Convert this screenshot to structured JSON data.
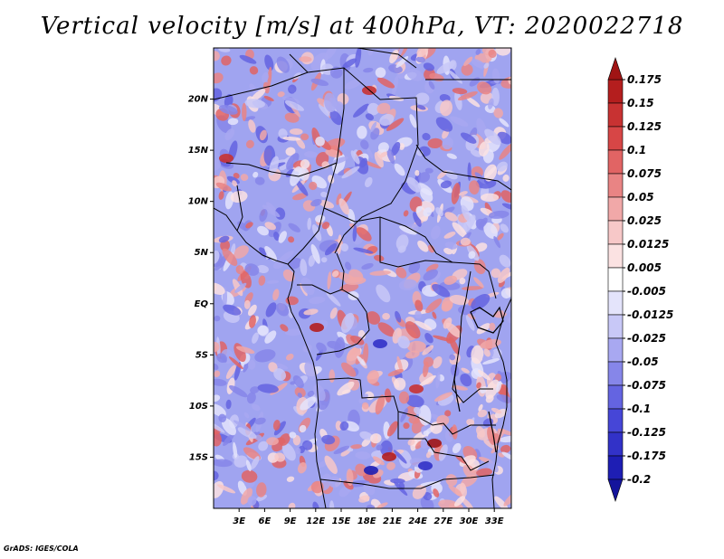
{
  "title": "Vertical velocity [m/s] at 400hPa, VT: 2020022718",
  "credit": "GrADS: IGES/COLA",
  "map": {
    "projection": "lat-lon",
    "lon_range": [
      0,
      35
    ],
    "lat_range": [
      -20,
      25
    ],
    "lon_ticks": [
      {
        "value": 3,
        "label": "3E"
      },
      {
        "value": 6,
        "label": "6E"
      },
      {
        "value": 9,
        "label": "9E"
      },
      {
        "value": 12,
        "label": "12E"
      },
      {
        "value": 15,
        "label": "15E"
      },
      {
        "value": 18,
        "label": "18E"
      },
      {
        "value": 21,
        "label": "21E"
      },
      {
        "value": 24,
        "label": "24E"
      },
      {
        "value": 27,
        "label": "27E"
      },
      {
        "value": 30,
        "label": "30E"
      },
      {
        "value": 33,
        "label": "33E"
      }
    ],
    "lat_ticks": [
      {
        "value": 20,
        "label": "20N"
      },
      {
        "value": 15,
        "label": "15N"
      },
      {
        "value": 10,
        "label": "10N"
      },
      {
        "value": 5,
        "label": "5N"
      },
      {
        "value": 0,
        "label": "EQ"
      },
      {
        "value": -5,
        "label": "5S"
      },
      {
        "value": -10,
        "label": "10S"
      },
      {
        "value": -15,
        "label": "15S"
      }
    ],
    "region": "Central Africa"
  },
  "colorbar": {
    "levels": [
      {
        "label": "0.175",
        "color": "#a01414"
      },
      {
        "label": "0.15",
        "color": "#b41e1e"
      },
      {
        "label": "0.125",
        "color": "#c83232"
      },
      {
        "label": "0.1",
        "color": "#d74646"
      },
      {
        "label": "0.075",
        "color": "#e16464"
      },
      {
        "label": "0.05",
        "color": "#e98484"
      },
      {
        "label": "0.025",
        "color": "#f1a8a8"
      },
      {
        "label": "0.0125",
        "color": "#f7c8c8"
      },
      {
        "label": "0.005",
        "color": "#fbe2e2"
      },
      {
        "label": "-0.005",
        "color": "#ffffff"
      },
      {
        "label": "-0.0125",
        "color": "#e4e4fb"
      },
      {
        "label": "-0.025",
        "color": "#c8c8f7"
      },
      {
        "label": "-0.05",
        "color": "#a8a8f1"
      },
      {
        "label": "-0.075",
        "color": "#8686e9"
      },
      {
        "label": "-0.1",
        "color": "#6464e1"
      },
      {
        "label": "-0.125",
        "color": "#4646d7"
      },
      {
        "label": "-0.175",
        "color": "#3232c8"
      },
      {
        "label": "-0.2",
        "color": "#1e1eb4"
      }
    ],
    "top_color": "#a01414",
    "bottom_color": "#14149c"
  }
}
